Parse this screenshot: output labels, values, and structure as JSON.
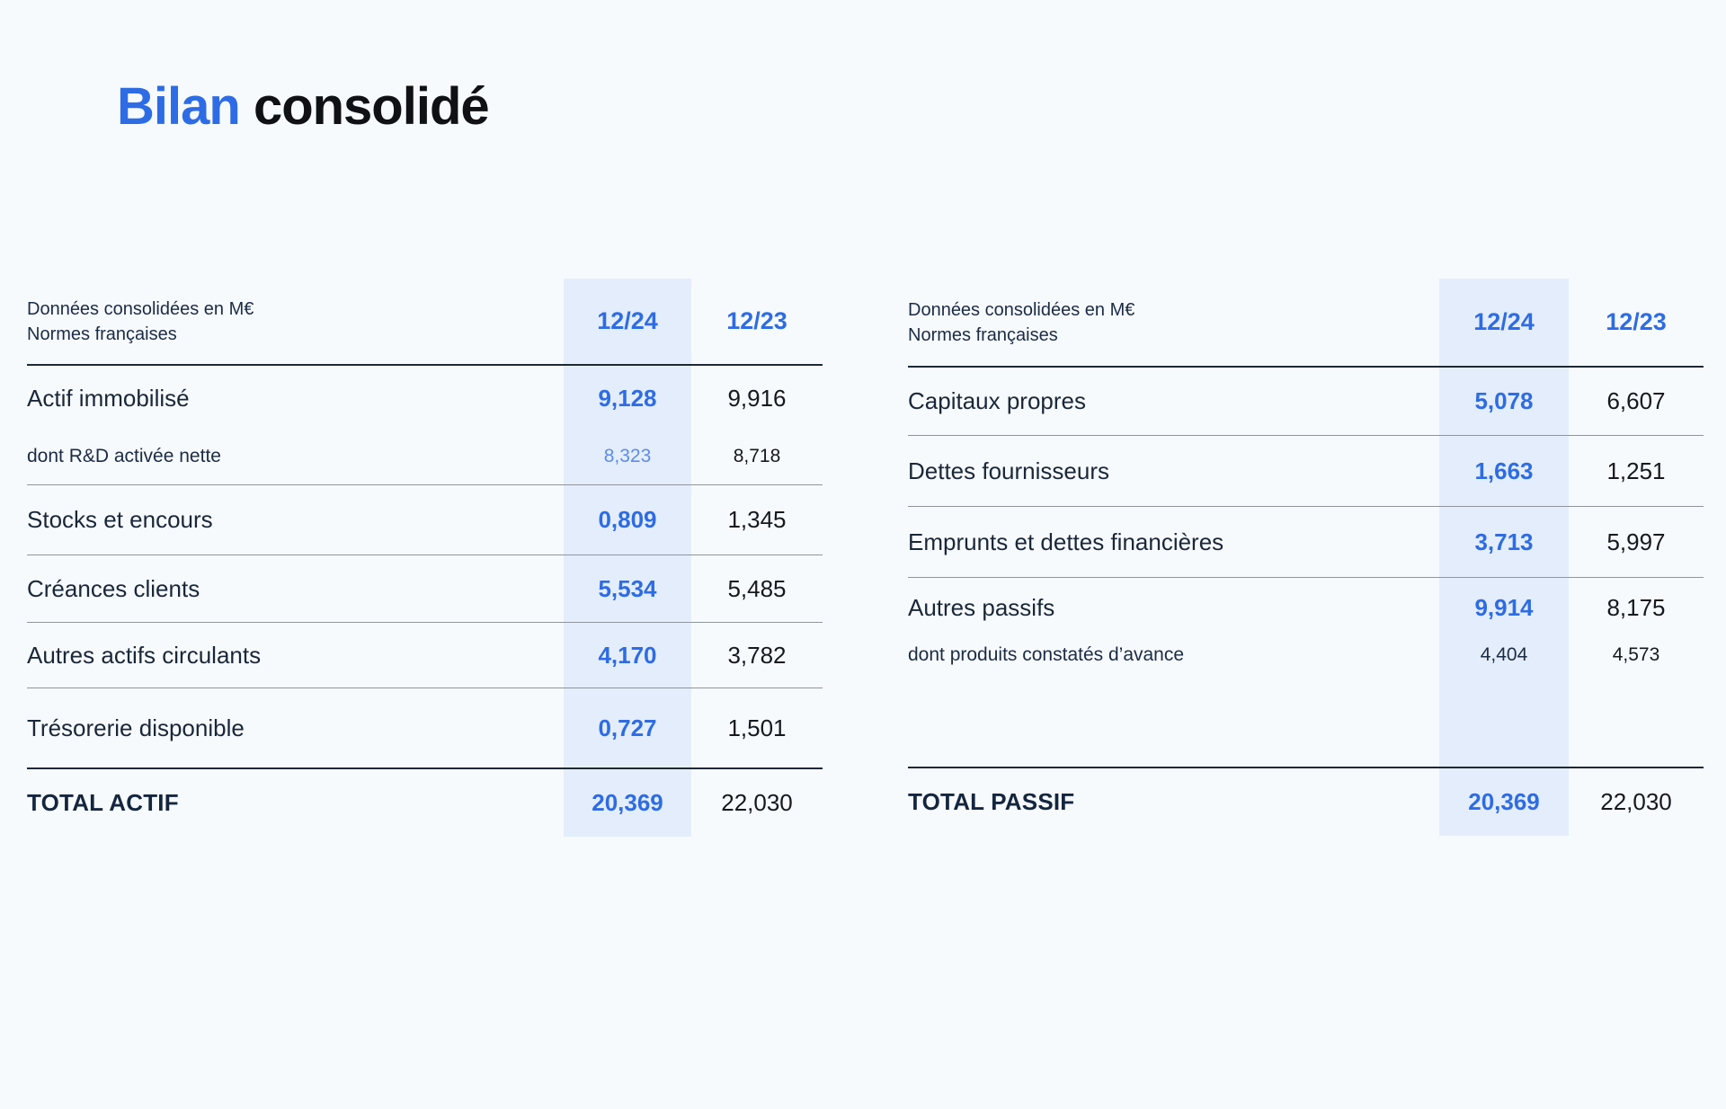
{
  "title": {
    "accent": "Bilan",
    "rest": "consolidé"
  },
  "colors": {
    "accent_blue": "#2d6ce5",
    "sub_value_blue": "#5d8cea",
    "column_highlight": "#e4edfb",
    "background": "#f7fafd",
    "dark_navy_text": "#1b2b45",
    "rule_dark": "#1e2936",
    "rule_gray": "#8e959d"
  },
  "tables": [
    {
      "name": "actif",
      "header": {
        "note_line1": "Données consolidées en M€",
        "note_line2": "Normes françaises",
        "col_current": "12/24",
        "col_previous": "12/23"
      },
      "rows": [
        {
          "label": "Actif immobilisé",
          "current": "9,128",
          "previous": "9,916",
          "sub_label": "dont R&D activée nette",
          "sub_current": "8,323",
          "sub_previous": "8,718"
        },
        {
          "label": "Stocks et encours",
          "current": "0,809",
          "previous": "1,345"
        },
        {
          "label": "Créances clients",
          "current": "5,534",
          "previous": "5,485"
        },
        {
          "label": "Autres actifs circulants",
          "current": "4,170",
          "previous": "3,782"
        },
        {
          "label": "Trésorerie disponible",
          "current": "0,727",
          "previous": "1,501"
        }
      ],
      "total": {
        "label": "TOTAL ACTIF",
        "current": "20,369",
        "previous": "22,030"
      }
    },
    {
      "name": "passif",
      "header": {
        "note_line1": "Données consolidées en M€",
        "note_line2": "Normes françaises",
        "col_current": "12/24",
        "col_previous": "12/23"
      },
      "rows": [
        {
          "label": "Capitaux propres",
          "current": "5,078",
          "previous": "6,607"
        },
        {
          "label": "Dettes fournisseurs",
          "current": "1,663",
          "previous": "1,251"
        },
        {
          "label": "Emprunts et dettes financières",
          "current": "3,713",
          "previous": "5,997"
        },
        {
          "label": "Autres passifs",
          "current": "9,914",
          "previous": "8,175",
          "sub_label": "dont produits constatés d’avance",
          "sub_current": "4,404",
          "sub_previous": "4,573"
        }
      ],
      "total": {
        "label": "TOTAL PASSIF",
        "current": "20,369",
        "previous": "22,030"
      }
    }
  ]
}
